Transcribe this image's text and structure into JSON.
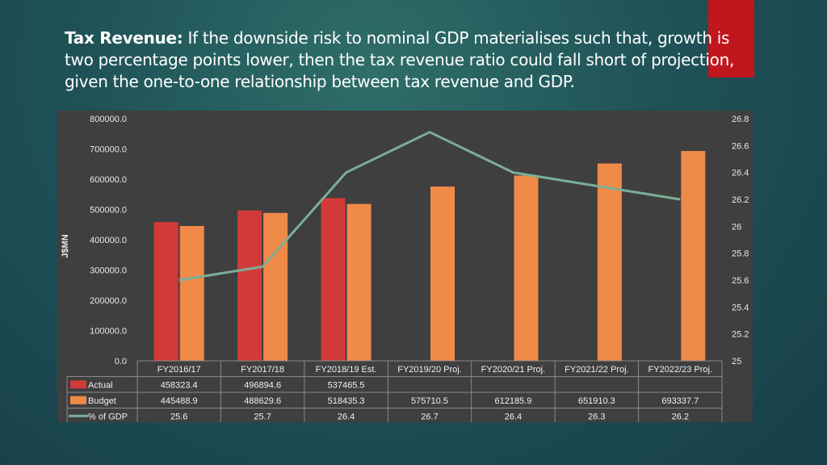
{
  "title": {
    "lead": "Tax Revenue:",
    "text": " If the downside risk to nominal GDP materialises such that, growth is two percentage points lower, then the tax revenue ratio could fall short of projection, given the one-to-one relationship between tax revenue and GDP."
  },
  "colors": {
    "actual": "#d23a3a",
    "budget": "#f08a48",
    "gdp_line": "#7cae95",
    "accent": "#c0161c"
  },
  "chart_data": {
    "type": "bar",
    "categories": [
      "FY2016/17",
      "FY2017/18",
      "FY2018/19 Est.",
      "FY2019/20 Proj.",
      "FY2020/21 Proj.",
      "FY2021/22 Proj.",
      "FY2022/23 Proj."
    ],
    "ylabel": "J$MN",
    "ylim": [
      0,
      800000
    ],
    "yticks": [
      "0.0",
      "100000.0",
      "200000.0",
      "300000.0",
      "400000.0",
      "500000.0",
      "600000.0",
      "700000.0",
      "800000.0"
    ],
    "y2lim": [
      25,
      26.8
    ],
    "y2ticks": [
      "25",
      "25.2",
      "25.4",
      "25.6",
      "25.8",
      "26",
      "26.2",
      "26.4",
      "26.6",
      "26.8"
    ],
    "series": [
      {
        "name": "Actual",
        "kind": "bar",
        "values": [
          458323.4,
          496894.6,
          537465.5,
          null,
          null,
          null,
          null
        ],
        "labels": [
          "458323.4",
          "496894.6",
          "537465.5",
          "",
          "",
          "",
          ""
        ]
      },
      {
        "name": "Budget",
        "kind": "bar",
        "values": [
          445488.9,
          488629.6,
          518435.3,
          575710.5,
          612185.9,
          651910.3,
          693337.7
        ],
        "labels": [
          "445488.9",
          "488629.6",
          "518435.3",
          "575710.5",
          "612185.9",
          "651910.3",
          "693337.7"
        ]
      },
      {
        "name": "% of GDP",
        "kind": "line",
        "axis": "secondary",
        "values": [
          25.6,
          25.7,
          26.4,
          26.7,
          26.4,
          26.3,
          26.2
        ],
        "labels": [
          "25.6",
          "25.7",
          "26.4",
          "26.7",
          "26.4",
          "26.3",
          "26.2"
        ]
      }
    ],
    "grid": false,
    "legend": "data-table"
  }
}
